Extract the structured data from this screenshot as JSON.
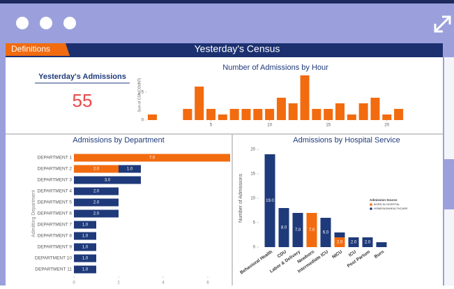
{
  "header": {
    "tab": "Definitions",
    "title": "Yesterday's Census"
  },
  "kpi": {
    "label": "Yesterday's Admissions",
    "value": 55
  },
  "chart_data": [
    {
      "type": "bar",
      "title": "Number of Admissions by Hour",
      "ylabel": "Sum of CSN(COUNT)",
      "x": [
        0,
        3,
        4,
        5,
        6,
        7,
        8,
        9,
        10,
        11,
        12,
        13,
        14,
        15,
        16,
        17,
        18,
        19,
        20,
        21
      ],
      "values": [
        1,
        2,
        6,
        2,
        1,
        2,
        2,
        2,
        2,
        4,
        3,
        8,
        2,
        2,
        3,
        1,
        3,
        4,
        1,
        2
      ],
      "color": "#f26b0f",
      "xlim": [
        -0.5,
        21.5
      ],
      "xticks": [
        5,
        10,
        15,
        20
      ],
      "ylim": [
        0,
        9
      ],
      "yticks": [
        0,
        5
      ]
    },
    {
      "type": "hbar",
      "title": "Admissions by Department",
      "ylabel": "Admitting Department",
      "categories": [
        "DEPARTMENT 1",
        "DEPARTMENT 2",
        "DEPARTMENT 3",
        "DEPARTMENT 4",
        "DEPARTMENT 5",
        "DEPARTMENT 6",
        "DEPARTMENT 7",
        "DEPARTMENT 8",
        "DEPARTMENT 9",
        "DEPARTMENT 10",
        "DEPARTMENT 11"
      ],
      "series": [
        {
          "color": "#f26b0f",
          "values": [
            7,
            2,
            null,
            null,
            null,
            null,
            null,
            null,
            null,
            null,
            null
          ],
          "value_labels": [
            "7.0",
            "2.0",
            null,
            null,
            null,
            null,
            null,
            null,
            null,
            null,
            null
          ]
        },
        {
          "color": "#1f3a7a",
          "values": [
            null,
            1,
            3,
            2,
            2,
            2,
            1,
            1,
            1,
            1,
            1
          ],
          "value_labels": [
            null,
            "1.0",
            "3.0",
            "2.0",
            "2.0",
            "2.0",
            "1.0",
            "1.0",
            "1.0",
            "1.0",
            "1.0"
          ]
        }
      ],
      "xlim": [
        0,
        7
      ],
      "xticks": [
        0,
        2,
        4,
        6
      ]
    },
    {
      "type": "stacked",
      "title": "Admissions by Hospital Service",
      "ylabel": "Number of Admissions",
      "legend_title": "Admission Source",
      "categories": [
        "Behavioral Health",
        "CDU",
        "Labor & Delivery",
        "Newborn",
        "Intermediate ICU",
        "NICU",
        "ICU",
        "Post Partum",
        "Burn"
      ],
      "series": [
        {
          "name": "BORN IN HOSPITAL",
          "color": "#f26b0f",
          "values": [
            null,
            null,
            null,
            7,
            null,
            2,
            null,
            null,
            null
          ],
          "value_labels": [
            null,
            null,
            null,
            "7.0",
            null,
            "2.0",
            null,
            null,
            null
          ]
        },
        {
          "name": "HOME/NONHEALTHCARE",
          "color": "#1f3a7a",
          "values": [
            19,
            8,
            7,
            null,
            6,
            1,
            2,
            2,
            1
          ],
          "value_labels": [
            "19.0",
            "8.0",
            "7.0",
            null,
            "6.0",
            null,
            "2.0",
            "2.0",
            null
          ]
        }
      ],
      "ylim": [
        0,
        20
      ],
      "yticks": [
        0,
        5,
        10,
        15,
        20
      ],
      "legend": "right"
    }
  ]
}
